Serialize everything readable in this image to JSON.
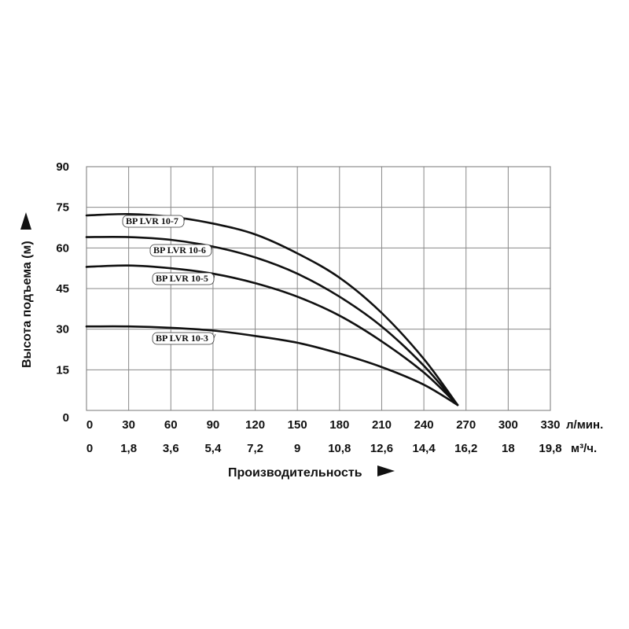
{
  "chart_data": {
    "type": "line",
    "ylabel": "Высота подъема (м)",
    "xlabel": "Производительность",
    "x_unit_primary": "л/мин.",
    "x_unit_secondary": "м³/ч.",
    "xlim": [
      0,
      330
    ],
    "ylim": [
      0,
      90
    ],
    "grid": true,
    "x_ticks_primary": [
      "0",
      "30",
      "60",
      "90",
      "120",
      "150",
      "180",
      "210",
      "240",
      "270",
      "300",
      "330"
    ],
    "x_ticks_secondary": [
      "0",
      "1,8",
      "3,6",
      "5,4",
      "7,2",
      "9",
      "10,8",
      "12,6",
      "14,4",
      "16,2",
      "18",
      "19,8"
    ],
    "y_ticks": [
      "0",
      "15",
      "30",
      "45",
      "60",
      "75",
      "90"
    ],
    "series": [
      {
        "name": "BP LVR 10-7",
        "x": [
          0,
          30,
          60,
          90,
          120,
          150,
          180,
          210,
          240,
          264
        ],
        "y": [
          72,
          72.5,
          71.5,
          69,
          65,
          58,
          49,
          36,
          19,
          2
        ]
      },
      {
        "name": "BP LVR 10-6",
        "x": [
          0,
          30,
          60,
          90,
          120,
          150,
          180,
          210,
          240,
          264
        ],
        "y": [
          64,
          64,
          63,
          60.5,
          56.5,
          50.5,
          42,
          31,
          16.5,
          2
        ]
      },
      {
        "name": "BP LVR 10-5",
        "x": [
          0,
          30,
          60,
          90,
          120,
          150,
          180,
          210,
          240,
          264
        ],
        "y": [
          53,
          53.5,
          52.5,
          50.5,
          47,
          42,
          35,
          25.5,
          14,
          2
        ]
      },
      {
        "name": "BP LVR 10-3",
        "x": [
          0,
          30,
          60,
          90,
          120,
          150,
          180,
          210,
          240,
          264
        ],
        "y": [
          31,
          31,
          30.5,
          29.5,
          27.5,
          25,
          21,
          16,
          9.5,
          2
        ]
      }
    ]
  }
}
